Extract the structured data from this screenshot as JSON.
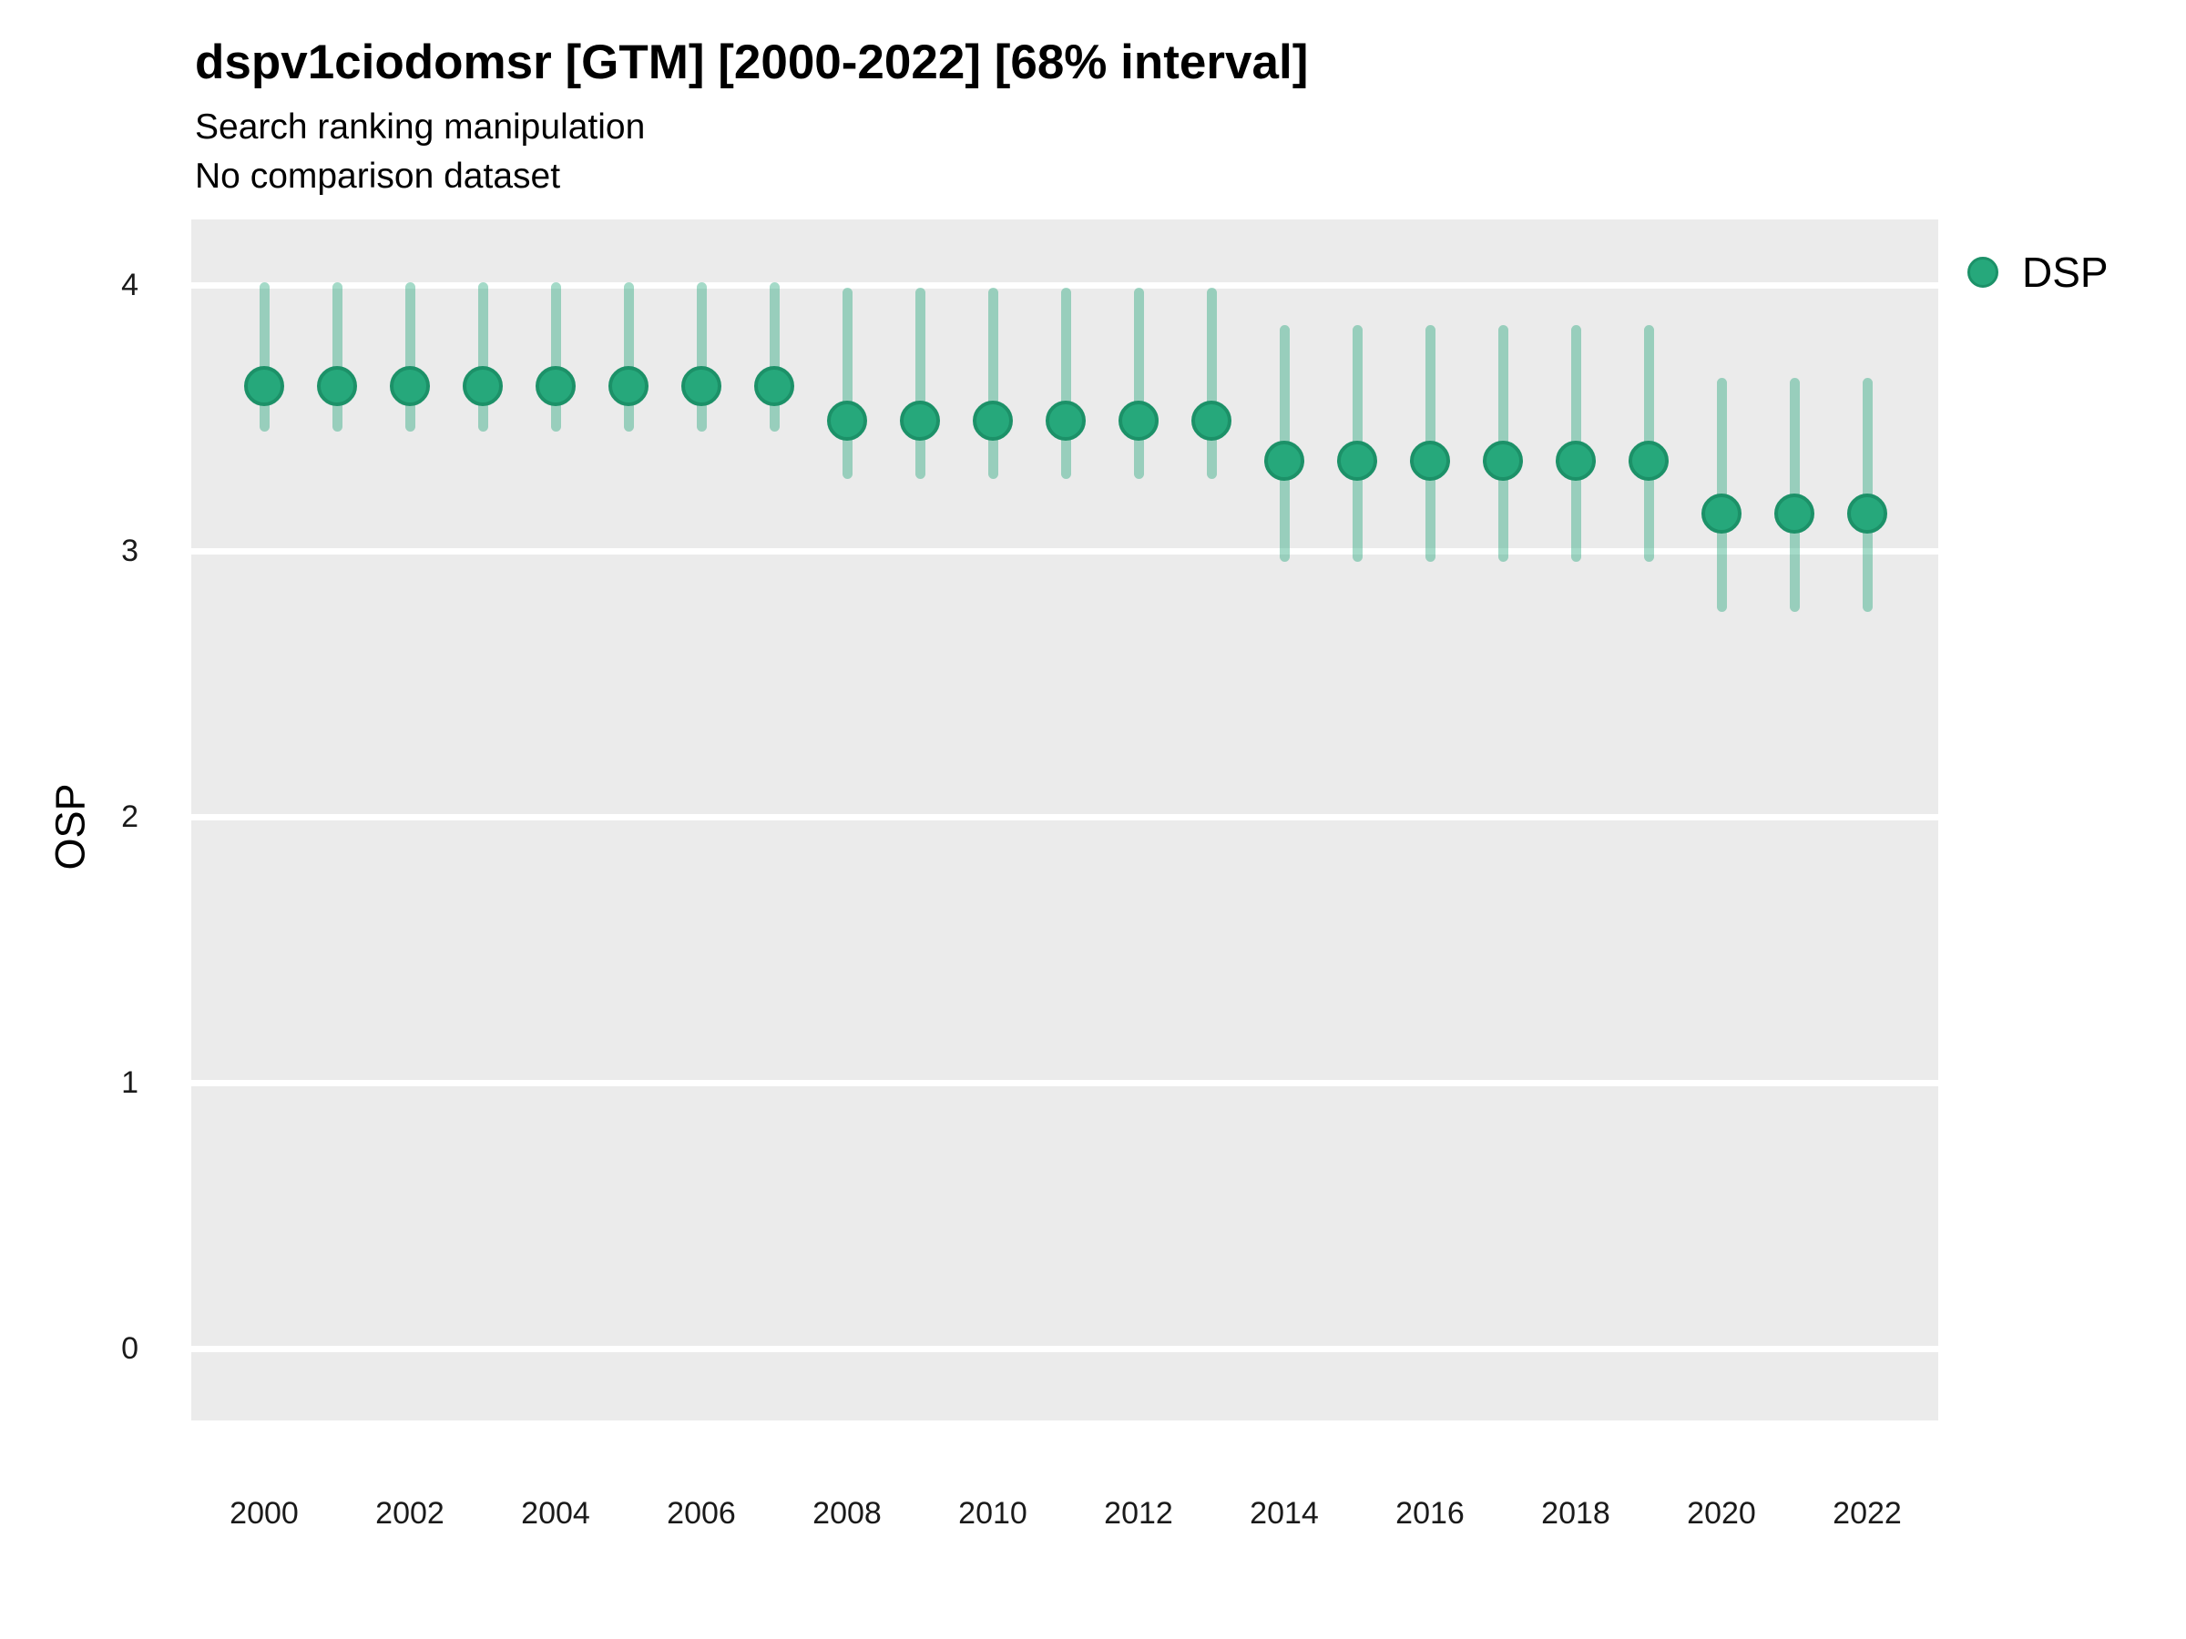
{
  "header": {
    "title": "dspv1ciodomsr [GTM] [2000-2022] [68% interval]",
    "subtitle": "Search ranking manipulation",
    "note": "No comparison dataset"
  },
  "legend": {
    "label": "DSP"
  },
  "axes": {
    "y_title": "OSP",
    "y_ticks": [
      4,
      3,
      2,
      1,
      0
    ],
    "x_ticks": [
      2000,
      2002,
      2004,
      2006,
      2008,
      2010,
      2012,
      2014,
      2016,
      2018,
      2020,
      2022
    ]
  },
  "colors": {
    "marker_fill": "#26A87B",
    "marker_edge": "#1C9168",
    "errorbar": "rgba(38,168,123,0.42)",
    "panel_bg": "#EBEBEB",
    "gridline": "#FFFFFF"
  },
  "chart_data": {
    "type": "scatter",
    "title": "dspv1ciodomsr [GTM] [2000-2022] [68% interval]",
    "subtitle": "Search ranking manipulation",
    "note": "No comparison dataset",
    "xlabel": "",
    "ylabel": "OSP",
    "xlim": [
      1999,
      2023
    ],
    "ylim": [
      0,
      4
    ],
    "interval": "68%",
    "grid": "major-horizontal-only",
    "legend_position": "right",
    "series": [
      {
        "name": "DSP",
        "x": [
          2000,
          2001,
          2002,
          2003,
          2004,
          2005,
          2006,
          2007,
          2008,
          2009,
          2010,
          2011,
          2012,
          2013,
          2014,
          2015,
          2016,
          2017,
          2018,
          2019,
          2020,
          2021,
          2022
        ],
        "y": [
          3.62,
          3.62,
          3.62,
          3.62,
          3.62,
          3.62,
          3.62,
          3.62,
          3.49,
          3.49,
          3.49,
          3.49,
          3.49,
          3.49,
          3.34,
          3.34,
          3.34,
          3.34,
          3.34,
          3.34,
          3.14,
          3.14,
          3.14
        ],
        "y_lo": [
          3.45,
          3.45,
          3.45,
          3.45,
          3.45,
          3.45,
          3.45,
          3.45,
          3.27,
          3.27,
          3.27,
          3.27,
          3.27,
          3.27,
          2.96,
          2.96,
          2.96,
          2.96,
          2.96,
          2.96,
          2.77,
          2.77,
          2.77
        ],
        "y_hi": [
          4.01,
          4.01,
          4.01,
          4.01,
          4.01,
          4.01,
          4.01,
          4.01,
          3.99,
          3.99,
          3.99,
          3.99,
          3.99,
          3.99,
          3.85,
          3.85,
          3.85,
          3.85,
          3.85,
          3.85,
          3.65,
          3.65,
          3.65
        ]
      }
    ]
  }
}
